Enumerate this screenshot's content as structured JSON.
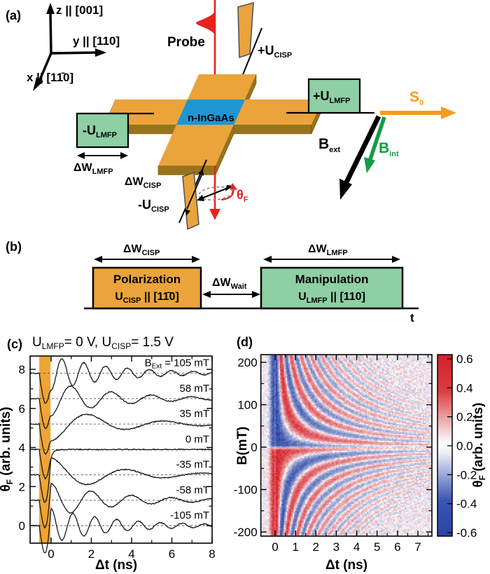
{
  "colors": {
    "orange": "#EBA33C",
    "orange_dark": "#97741B",
    "orange_band": "#F0A434",
    "blue_sample": "#1E96D4",
    "green_fill": "#8ECFA3",
    "green_arrow": "#149B47",
    "red": "#E8231E",
    "gray_stroke": "#555555",
    "heat_pos": "#D41F28",
    "heat_neg": "#2A44A4"
  },
  "panel_a": {
    "tag": "(a)",
    "axis_z": "z || [001]",
    "axis_y": "y || [110]",
    "axis_x": "x || [11̄0]",
    "probe": "Probe",
    "sample": "n-InGaAs",
    "u_cisp_plus": {
      "main": "+U",
      "sub": "CISP"
    },
    "u_cisp_minus": {
      "main": "-U",
      "sub": "CISP"
    },
    "u_lmfp_plus": {
      "main": "+U",
      "sub": "LMFP"
    },
    "u_lmfp_minus": {
      "main": "-U",
      "sub": "LMFP"
    },
    "dw_lmfp": {
      "main": "ΔW",
      "sub": "LMFP"
    },
    "dw_cisp": {
      "main": "ΔW",
      "sub": "CISP"
    },
    "s0": {
      "main": "S",
      "sub": "0"
    },
    "b_ext": {
      "main": "B",
      "sub": "ext"
    },
    "b_int": {
      "main": "B",
      "sub": "int"
    },
    "theta_f": {
      "main": "θ",
      "sub": "F"
    }
  },
  "panel_b": {
    "tag": "(b)",
    "dw_cisp": {
      "main": "ΔW",
      "sub": "CISP"
    },
    "dw_lmfp": {
      "main": "ΔW",
      "sub": "LMFP"
    },
    "dw_wait": {
      "main": "ΔW",
      "sub": "Wait"
    },
    "pol_line1": "Polarization",
    "pol_u": {
      "main": "U",
      "sub": "CISP",
      "rest": " || [11̄0]"
    },
    "man_line1": "Manipulation",
    "man_u": {
      "main": "U",
      "sub": "LMFP",
      "rest": " || [110]"
    },
    "t_label": "t"
  },
  "panel_c": {
    "tag": "(c)",
    "title": {
      "u1": "U",
      "sub1": "LMFP",
      "mid": "= 0 V, U",
      "sub2": "CISP",
      "end": "= 1.5 V"
    },
    "xlabel": "Δt (ns)",
    "ylabel": {
      "main": "θ",
      "sub": "F",
      "rest": " (arb. units)"
    },
    "first_trace_prefix": {
      "main": "B",
      "sub": "Ext",
      "eq": " = "
    }
  },
  "panel_d": {
    "tag": "(d)",
    "xlabel": "Δt (ns)",
    "ylabel": "B(mT)",
    "cbar_label": {
      "main": "θ",
      "sub": "F",
      "rest": " (arb. units)"
    }
  },
  "chart_data": [
    {
      "id": "panel_c",
      "type": "line",
      "title": "U_LMFP = 0 V, U_CISP = 1.5 V",
      "xlabel": "Δt (ns)",
      "ylabel": "θ_F (arb. units)",
      "xlim": [
        -1.04,
        8.0
      ],
      "ylim": [
        -0.9,
        8.68
      ],
      "xticks": [
        0,
        2,
        4,
        6,
        8
      ],
      "xminor": [
        1,
        3,
        5,
        7
      ],
      "yticks": [
        0,
        2,
        4,
        6,
        8
      ],
      "yminor": [
        1,
        3,
        5,
        7
      ],
      "pump_band": [
        -0.59,
        -0.03
      ],
      "amp": 0.88,
      "tau": 3.2,
      "dip_depth": 1.6,
      "noise": 0.025,
      "traces": [
        {
          "label": "105 mT",
          "B_mT": 105,
          "freq_GHz": 0.92,
          "sign": -1,
          "offset": 7.8
        },
        {
          "label": "58 mT",
          "B_mT": 58,
          "freq_GHz": 0.5,
          "sign": -1,
          "offset": 6.5
        },
        {
          "label": "35 mT",
          "B_mT": 35,
          "freq_GHz": 0.265,
          "sign": -1,
          "offset": 5.2
        },
        {
          "label": "0 mT",
          "B_mT": 0,
          "freq_GHz": 0.0,
          "sign": 0,
          "offset": 3.9
        },
        {
          "label": "-35 mT",
          "B_mT": -35,
          "freq_GHz": 0.265,
          "sign": 1,
          "offset": 2.6
        },
        {
          "label": "-58 mT",
          "B_mT": -58,
          "freq_GHz": 0.5,
          "sign": 1,
          "offset": 1.3
        },
        {
          "label": "-105 mT",
          "B_mT": -105,
          "freq_GHz": 0.92,
          "sign": 1,
          "offset": 0.0
        }
      ]
    },
    {
      "id": "panel_d",
      "type": "heatmap",
      "xlabel": "Δt (ns)",
      "ylabel": "B(mT)",
      "xlim": [
        -0.7,
        7.69
      ],
      "ylim": [
        -210,
        218
      ],
      "xticks": [
        0,
        1,
        2,
        3,
        4,
        5,
        6,
        7
      ],
      "xminor_step": 0.5,
      "ytick_labels": [
        "200",
        "100",
        "0",
        "-100",
        "-200"
      ],
      "yticks": [
        200,
        100,
        0,
        -100,
        -200
      ],
      "yminor": [
        150,
        50,
        -50,
        -150
      ],
      "zlim": [
        -0.6,
        0.6
      ],
      "cbar_tick_labels": [
        "0.6",
        "0.4",
        "0.2",
        "0.0",
        "-0.2",
        "-0.4",
        "-0.6"
      ],
      "cbar_ticks": [
        0.6,
        0.4,
        0.2,
        0.0,
        -0.2,
        -0.4,
        -0.6
      ],
      "model": {
        "freq_per_mT": 0.0093,
        "amp": 0.62,
        "decay_base": 0.16,
        "decay_per_mT": 0.0011,
        "zero_line_width_mT": 4,
        "noise": 0.17,
        "prepulse": {
          "center": -0.13,
          "width": 0.17,
          "amp": 0.55
        }
      }
    }
  ]
}
